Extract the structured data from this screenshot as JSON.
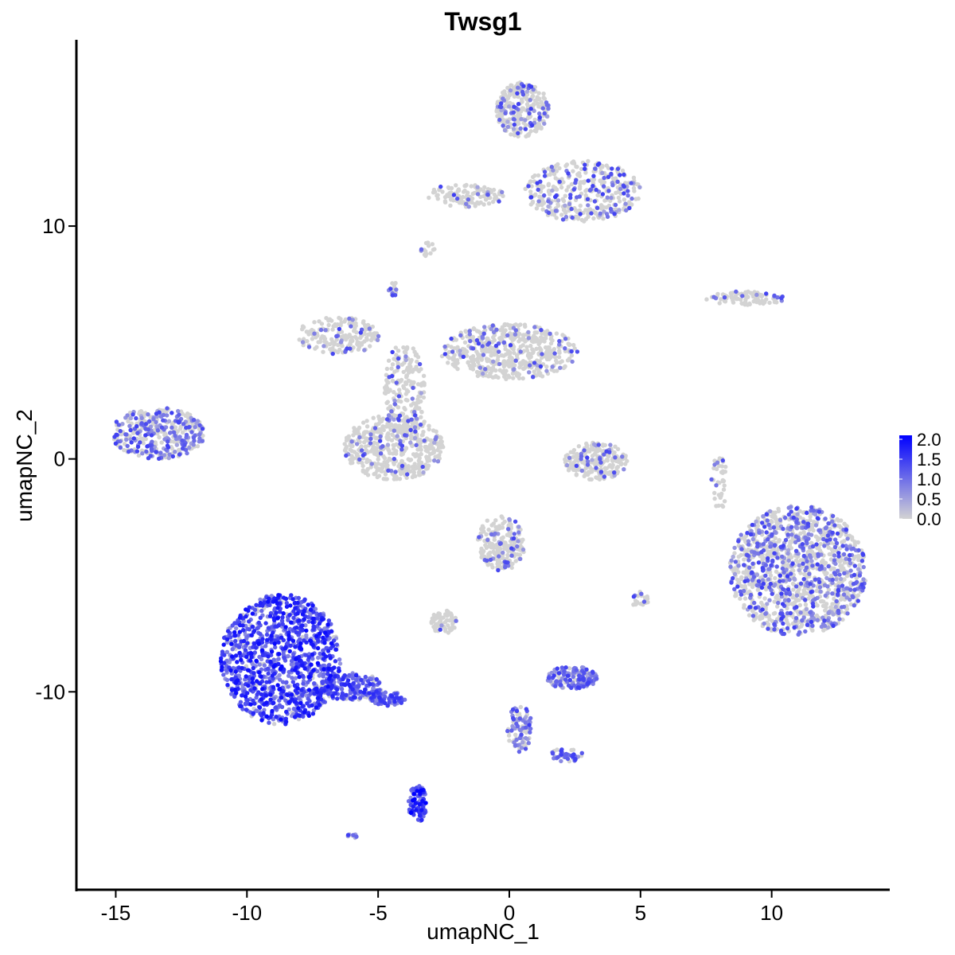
{
  "chart_data": {
    "type": "scatter",
    "title": "Twsg1",
    "xlabel": "umapNC_1",
    "ylabel": "umapNC_2",
    "xlim": [
      -16.5,
      14.5
    ],
    "ylim": [
      -18.5,
      18
    ],
    "xticks": [
      -15,
      -10,
      -5,
      0,
      5,
      10
    ],
    "xtick_labels": [
      "-15",
      "-10",
      "-5",
      "0",
      "5",
      "10"
    ],
    "yticks": [
      -10,
      0,
      10
    ],
    "ytick_labels": [
      "-10",
      "0",
      "10"
    ],
    "grid": false,
    "legend": {
      "placement": "right",
      "values": [
        2.0,
        1.5,
        1.0,
        0.5,
        0.0
      ],
      "labels": [
        "2.0",
        "1.5",
        "1.0",
        "0.5",
        "0.0"
      ],
      "range": [
        0,
        2.1
      ],
      "low_color": "#d3d3d3",
      "high_color": "#0000ff"
    },
    "clusters": [
      {
        "center": [
          -8.7,
          -8.6
        ],
        "radius": [
          2.3,
          2.8
        ],
        "count": 1100,
        "mean_expr": 1.35
      },
      {
        "center": [
          -6.0,
          -9.8
        ],
        "radius": [
          1.2,
          0.6
        ],
        "count": 180,
        "mean_expr": 1.1
      },
      {
        "center": [
          -4.6,
          -10.3
        ],
        "radius": [
          0.7,
          0.3
        ],
        "count": 70,
        "mean_expr": 1.0
      },
      {
        "center": [
          -3.5,
          -14.8
        ],
        "radius": [
          0.35,
          0.8
        ],
        "count": 90,
        "mean_expr": 1.5
      },
      {
        "center": [
          -13.4,
          1.1
        ],
        "radius": [
          1.8,
          1.1
        ],
        "count": 380,
        "mean_expr": 0.35
      },
      {
        "center": [
          -4.4,
          0.5
        ],
        "radius": [
          1.9,
          1.4
        ],
        "count": 480,
        "mean_expr": 0.12
      },
      {
        "center": [
          -6.5,
          5.3
        ],
        "radius": [
          1.6,
          0.8
        ],
        "count": 180,
        "mean_expr": 0.1
      },
      {
        "center": [
          -4.0,
          3.0
        ],
        "radius": [
          0.8,
          2.0
        ],
        "count": 200,
        "mean_expr": 0.08
      },
      {
        "center": [
          0.0,
          4.6
        ],
        "radius": [
          2.6,
          1.2
        ],
        "count": 520,
        "mean_expr": 0.12
      },
      {
        "center": [
          0.5,
          15.0
        ],
        "radius": [
          1.0,
          1.2
        ],
        "count": 280,
        "mean_expr": 0.2
      },
      {
        "center": [
          2.8,
          11.5
        ],
        "radius": [
          2.2,
          1.3
        ],
        "count": 380,
        "mean_expr": 0.2
      },
      {
        "center": [
          -1.7,
          11.3
        ],
        "radius": [
          1.5,
          0.5
        ],
        "count": 120,
        "mean_expr": 0.12
      },
      {
        "center": [
          11.0,
          -4.8
        ],
        "radius": [
          2.6,
          2.8
        ],
        "count": 1300,
        "mean_expr": 0.3
      },
      {
        "center": [
          3.3,
          -0.1
        ],
        "radius": [
          1.2,
          0.8
        ],
        "count": 220,
        "mean_expr": 0.12
      },
      {
        "center": [
          -0.3,
          -3.6
        ],
        "radius": [
          0.9,
          1.2
        ],
        "count": 200,
        "mean_expr": 0.15
      },
      {
        "center": [
          -2.5,
          -7.0
        ],
        "radius": [
          0.5,
          0.5
        ],
        "count": 60,
        "mean_expr": 0.1
      },
      {
        "center": [
          2.4,
          -9.4
        ],
        "radius": [
          1.0,
          0.5
        ],
        "count": 150,
        "mean_expr": 0.6
      },
      {
        "center": [
          0.4,
          -11.6
        ],
        "radius": [
          0.5,
          1.0
        ],
        "count": 90,
        "mean_expr": 0.5
      },
      {
        "center": [
          2.2,
          -12.7
        ],
        "radius": [
          0.6,
          0.3
        ],
        "count": 40,
        "mean_expr": 0.9
      },
      {
        "center": [
          9.0,
          6.9
        ],
        "radius": [
          1.5,
          0.3
        ],
        "count": 90,
        "mean_expr": 0.15
      },
      {
        "center": [
          8.0,
          -1.0
        ],
        "radius": [
          0.3,
          1.2
        ],
        "count": 40,
        "mean_expr": 0.1
      },
      {
        "center": [
          5.0,
          -6.1
        ],
        "radius": [
          0.3,
          0.4
        ],
        "count": 25,
        "mean_expr": 0.1
      },
      {
        "center": [
          -3.1,
          9.0
        ],
        "radius": [
          0.3,
          0.3
        ],
        "count": 15,
        "mean_expr": 0.1
      },
      {
        "center": [
          -4.4,
          7.3
        ],
        "radius": [
          0.2,
          0.3
        ],
        "count": 15,
        "mean_expr": 0.3
      },
      {
        "center": [
          -6.0,
          -16.2
        ],
        "radius": [
          0.2,
          0.1
        ],
        "count": 8,
        "mean_expr": 0.8
      }
    ]
  }
}
